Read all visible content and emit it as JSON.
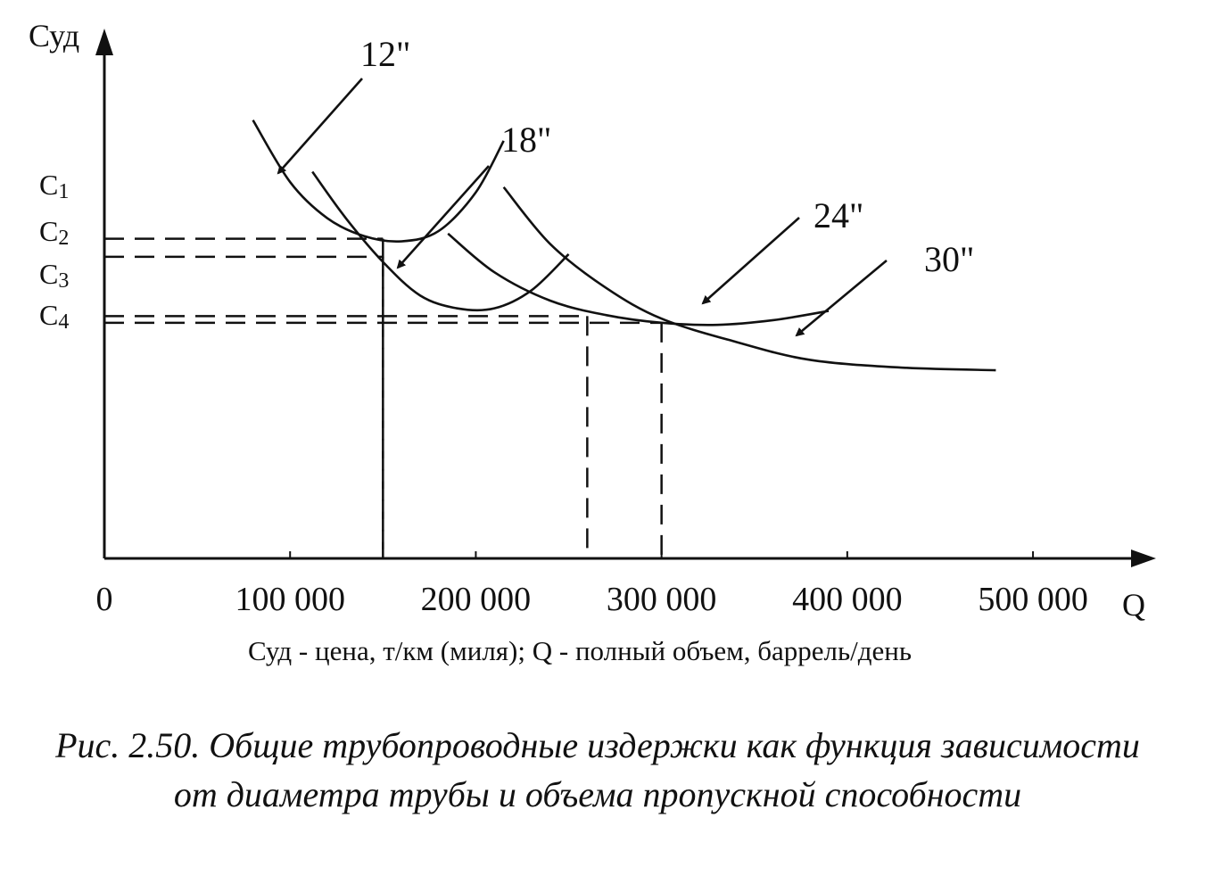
{
  "chart_data": {
    "type": "line",
    "ylabel": "Суд",
    "xlabel": "Q",
    "x_ticks": [
      "0",
      "100 000",
      "200 000",
      "300 000",
      "400 000",
      "500 000"
    ],
    "x_tick_values": [
      0,
      100000,
      200000,
      300000,
      400000,
      500000
    ],
    "xlim": [
      0,
      560000
    ],
    "ylim": [
      0,
      10
    ],
    "y_levels": [
      {
        "label": "C1",
        "value": 6.2
      },
      {
        "label": "C2",
        "value": 5.85
      },
      {
        "label": "C3",
        "value": 4.7
      },
      {
        "label": "C4",
        "value": 4.57
      }
    ],
    "series": [
      {
        "name": "12\"",
        "x": [
          80000,
          100000,
          120000,
          140000,
          160000,
          180000,
          200000,
          215000
        ],
        "y": [
          8.5,
          7.3,
          6.6,
          6.25,
          6.15,
          6.35,
          7.1,
          8.1
        ]
      },
      {
        "name": "18\"",
        "x": [
          112000,
          130000,
          150000,
          170000,
          190000,
          210000,
          230000,
          250000
        ],
        "y": [
          7.5,
          6.6,
          5.75,
          5.1,
          4.85,
          4.85,
          5.2,
          5.9
        ]
      },
      {
        "name": "24\"",
        "x": [
          185000,
          210000,
          240000,
          270000,
          300000,
          330000,
          360000,
          390000
        ],
        "y": [
          6.3,
          5.55,
          5.0,
          4.72,
          4.57,
          4.53,
          4.62,
          4.8
        ]
      },
      {
        "name": "30\"",
        "x": [
          215000,
          240000,
          270000,
          300000,
          340000,
          380000,
          430000,
          480000
        ],
        "y": [
          7.2,
          6.1,
          5.25,
          4.65,
          4.2,
          3.85,
          3.7,
          3.65
        ]
      }
    ],
    "guide_lines": [
      {
        "x": 150000,
        "y": 6.2
      },
      {
        "x": 150000,
        "y": 5.85
      },
      {
        "x": 260000,
        "y": 4.7
      },
      {
        "x": 300000,
        "y": 4.57
      }
    ],
    "grid": false,
    "legend": "arrows to each curve"
  },
  "units_note": "Суд - цена, т/км (миля); Q - полный объем, баррель/день",
  "caption": "Рис. 2.50. Общие трубопроводные издержки как функция зависимости от диаметра трубы и объема пропускной способности"
}
